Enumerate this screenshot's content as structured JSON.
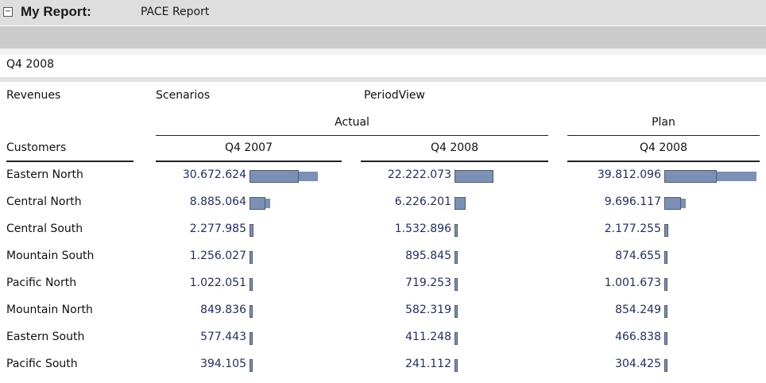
{
  "report": {
    "collapse_glyph": "⊟",
    "title_label": "My Report:",
    "title_value": "PACE Report",
    "period": "Q4 2008"
  },
  "dimensions": {
    "measure": "Revenues",
    "scenarios": "Scenarios",
    "period_view": "PeriodView",
    "rows_label": "Customers"
  },
  "scenarios": {
    "actual": "Actual",
    "plan": "Plan"
  },
  "columns": [
    "Q4 2007",
    "Q4 2008",
    "Q4 2008"
  ],
  "rows": [
    {
      "label": "Eastern North",
      "values": [
        "30.672.624",
        "22.222.073",
        "39.812.096"
      ],
      "raw": [
        30672624,
        22222073,
        39812096
      ]
    },
    {
      "label": "Central North",
      "values": [
        "8.885.064",
        "6.226.201",
        "9.696.117"
      ],
      "raw": [
        8885064,
        6226201,
        9696117
      ]
    },
    {
      "label": "Central South",
      "values": [
        "2.277.985",
        "1.532.896",
        "2.177.255"
      ],
      "raw": [
        2277985,
        1532896,
        2177255
      ]
    },
    {
      "label": "Mountain South",
      "values": [
        "1.256.027",
        "895.845",
        "874.655"
      ],
      "raw": [
        1256027,
        895845,
        874655
      ]
    },
    {
      "label": "Pacific North",
      "values": [
        "1.022.051",
        "719.253",
        "1.001.673"
      ],
      "raw": [
        1022051,
        719253,
        1001673
      ]
    },
    {
      "label": "Mountain North",
      "values": [
        "849.836",
        "582.319",
        "854.249"
      ],
      "raw": [
        849836,
        582319,
        854249
      ]
    },
    {
      "label": "Eastern South",
      "values": [
        "577.443",
        "411.248",
        "466.838"
      ],
      "raw": [
        577443,
        411248,
        466838
      ]
    },
    {
      "label": "Pacific South",
      "values": [
        "394.105",
        "241.112",
        "304.425"
      ],
      "raw": [
        394105,
        241112,
        304425
      ]
    }
  ],
  "colors": {
    "bar_fill": "#7c8fb4",
    "bar_border": "#505a70",
    "value_text": "#1f2f6e"
  }
}
